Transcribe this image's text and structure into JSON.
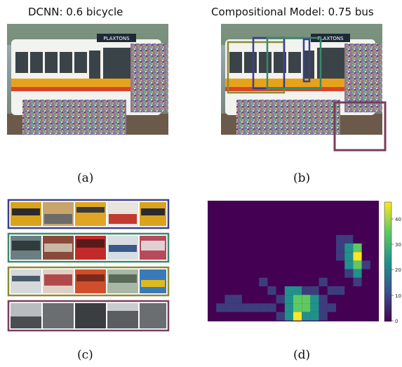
{
  "panel_a": {
    "title": "DCNN: 0.6 bicycle",
    "caption": "(a)",
    "bus_sign": "PLAXTONS"
  },
  "panel_b": {
    "title": "Compositional Model: 0.75 bus",
    "caption": "(b)",
    "bus_sign": "PLAXTONS",
    "box_colors": [
      "#3b3f8f",
      "#3a8a6a",
      "#8a8a35",
      "#7a3d5c"
    ]
  },
  "panel_c": {
    "caption": "(c)",
    "strip_border_colors": [
      "#3b3f8f",
      "#3a8a6a",
      "#8a8a35",
      "#7a3d5c"
    ]
  },
  "panel_d": {
    "caption": "(d)",
    "colorbar_ticks": [
      "40",
      "30",
      "20",
      "10",
      "0"
    ],
    "colormap": [
      "#440154",
      "#3b528b",
      "#21918c",
      "#5ec962",
      "#fde725"
    ]
  }
}
